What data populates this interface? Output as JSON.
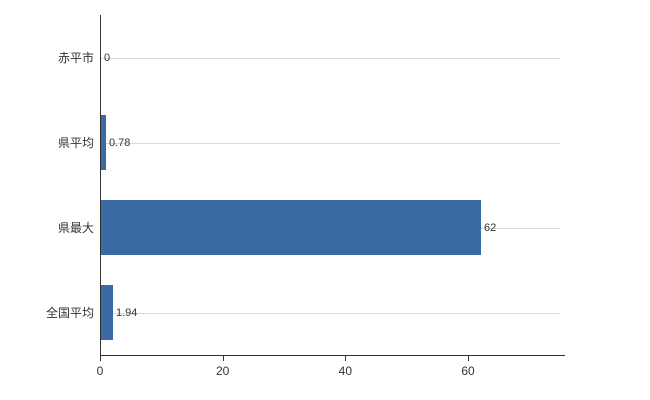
{
  "chart_data": {
    "type": "bar",
    "orientation": "horizontal",
    "title": "",
    "xlabel": "",
    "ylabel": "",
    "categories": [
      "赤平市",
      "県平均",
      "県最大",
      "全国平均"
    ],
    "values": [
      0,
      0.78,
      62,
      1.94
    ],
    "value_labels": [
      "0",
      "0.78",
      "62",
      "1.94"
    ],
    "xlim": [
      0,
      75
    ],
    "x_ticks": [
      0,
      20,
      40,
      60
    ],
    "x_tick_labels": [
      "0",
      "20",
      "40",
      "60"
    ],
    "grid": "horizontal-category-lines",
    "legend": "none",
    "bar_color": "#3a6aa4",
    "gridline_color": "#d9d9d9",
    "axis_color": "#333333",
    "text_color": "#333333",
    "background_color": "#ffffff"
  }
}
